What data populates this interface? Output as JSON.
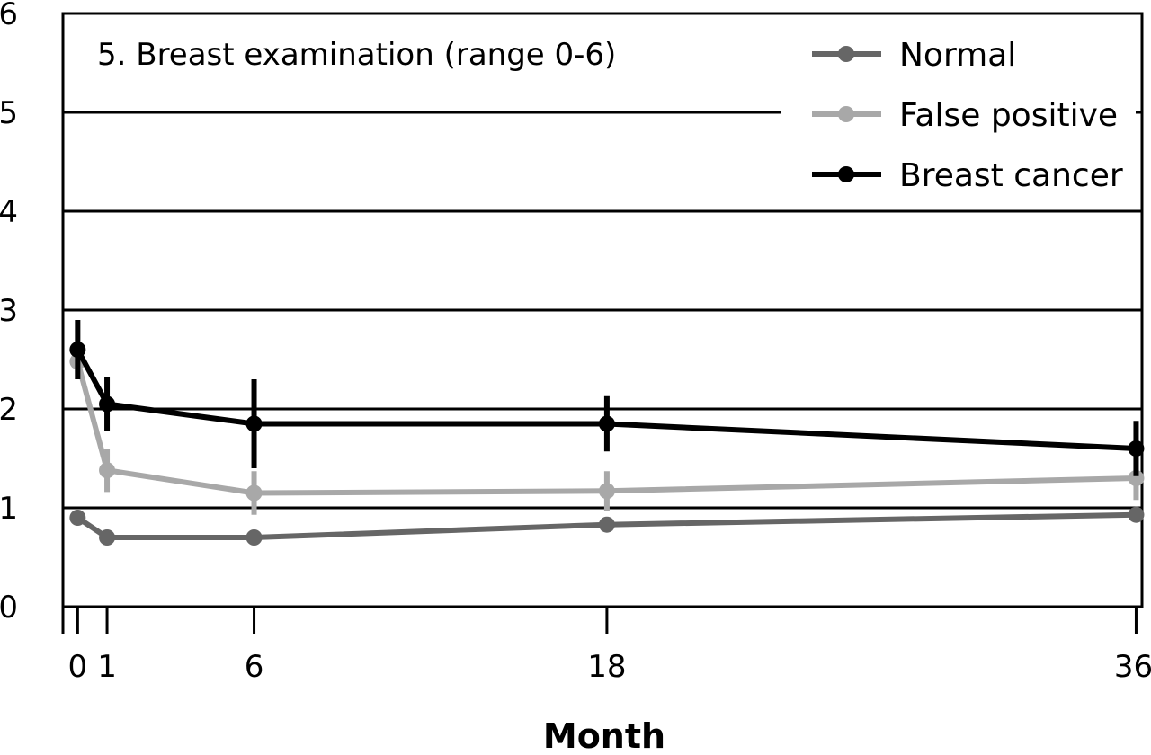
{
  "chart_data": {
    "type": "line",
    "title": "5. Breast examination (range 0-6)",
    "xlabel": "Month",
    "ylabel": "",
    "x": [
      0,
      1,
      6,
      18,
      36
    ],
    "xlim": [
      -0.5,
      36.2
    ],
    "ylim": [
      0,
      6
    ],
    "yticks": [
      "0",
      "1",
      "2",
      "3",
      "4",
      "5",
      "6"
    ],
    "xticks": [
      "0",
      "1",
      "6",
      "18",
      "36"
    ],
    "grid": "horizontal",
    "legend_position": "top-right",
    "series": [
      {
        "name": "Normal",
        "color": "#666666",
        "values": [
          0.9,
          0.7,
          0.7,
          0.83,
          0.93
        ],
        "errors": [
          0.06,
          0.05,
          0.05,
          0.05,
          0.06
        ]
      },
      {
        "name": "False positive",
        "color": "#a8a8a8",
        "values": [
          2.48,
          1.38,
          1.15,
          1.17,
          1.3
        ],
        "errors": [
          0.18,
          0.22,
          0.22,
          0.2,
          0.22
        ]
      },
      {
        "name": "Breast cancer",
        "color": "#000000",
        "values": [
          2.6,
          2.05,
          1.85,
          1.85,
          1.6
        ],
        "errors": [
          0.3,
          0.27,
          0.45,
          0.28,
          0.28
        ]
      }
    ]
  }
}
